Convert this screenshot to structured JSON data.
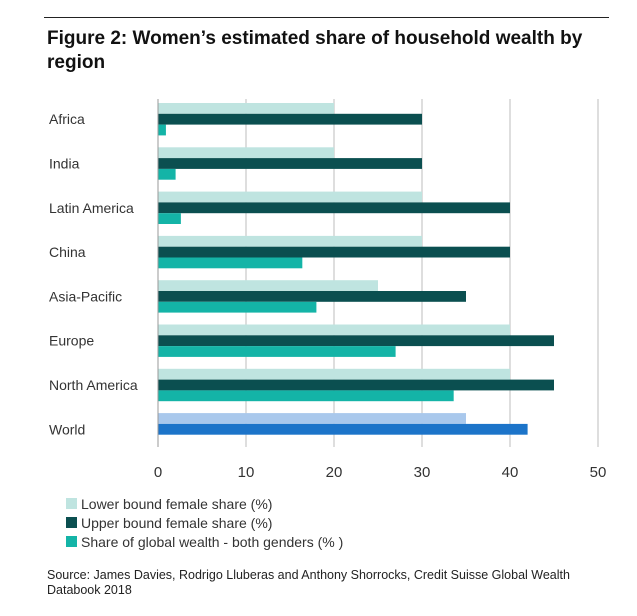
{
  "title": "Figure 2: Women’s estimated share of household wealth by region",
  "source": "Source: James Davies, Rodrigo Lluberas and Anthony Shorrocks, Credit Suisse Global Wealth Databook 2018",
  "chart_data": {
    "type": "bar",
    "orientation": "horizontal",
    "categories": [
      "Africa",
      "India",
      "Latin America",
      "China",
      "Asia-Pacific",
      "Europe",
      "North America",
      "World"
    ],
    "series": [
      {
        "name": "Lower bound female share (%)",
        "values": [
          20,
          20,
          30,
          30,
          25,
          40,
          40,
          35
        ],
        "color": "#bfe4e0",
        "world_color": "#a9c8ec"
      },
      {
        "name": "Upper bound female share (%)",
        "values": [
          30,
          30,
          40,
          40,
          35,
          45,
          45,
          42
        ],
        "color": "#0b4f50",
        "world_color": "#1c74c9"
      },
      {
        "name": "Share of global wealth - both genders (% )",
        "values": [
          0.9,
          2,
          2.6,
          16.4,
          18,
          27,
          33.6,
          null
        ],
        "color": "#14b4a7"
      }
    ],
    "x_ticks": [
      0,
      10,
      20,
      30,
      40,
      50
    ],
    "xlim": [
      0,
      50
    ],
    "grid": true,
    "legend_position": "bottom-left"
  }
}
